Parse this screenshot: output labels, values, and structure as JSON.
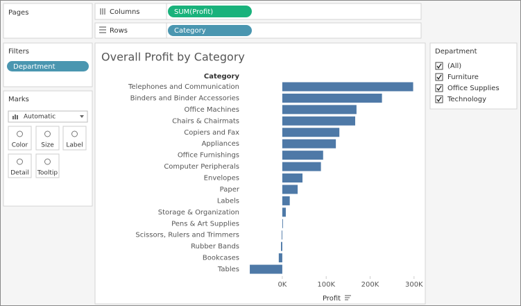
{
  "shelves": {
    "pages": "Pages",
    "columns": {
      "label": "Columns",
      "pill": "SUM(Profit)"
    },
    "rows": {
      "label": "Rows",
      "pill": "Category"
    }
  },
  "filters": {
    "title": "Filters",
    "pills": [
      "Department"
    ]
  },
  "marks": {
    "title": "Marks",
    "mark_type": "Automatic",
    "buttons": [
      "Color",
      "Size",
      "Label",
      "Detail",
      "Tooltip"
    ]
  },
  "chart_data": {
    "type": "bar",
    "orientation": "horizontal",
    "title": "Overall Profit by Category",
    "y_label": "Category",
    "x_label": "Profit",
    "categories": [
      "Telephones and Communication",
      "Binders and Binder Accessories",
      "Office Machines",
      "Chairs & Chairmats",
      "Copiers and Fax",
      "Appliances",
      "Office Furnishings",
      "Computer Peripherals",
      "Envelopes",
      "Paper",
      "Labels",
      "Storage & Organization",
      "Pens & Art Supplies",
      "Scissors, Rulers and Trimmers",
      "Rubber Bands",
      "Bookcases",
      "Tables"
    ],
    "values": [
      298000,
      227000,
      169000,
      166000,
      130000,
      122000,
      93000,
      88000,
      46000,
      35000,
      17000,
      8000,
      1500,
      -1500,
      -3000,
      -8000,
      -74000
    ],
    "color": "#4e79a7",
    "xlim": [
      -82000,
      324000
    ],
    "xticks": [
      {
        "value": 0,
        "label": "0K"
      },
      {
        "value": 100000,
        "label": "100K"
      },
      {
        "value": 200000,
        "label": "200K"
      },
      {
        "value": 300000,
        "label": "300K"
      }
    ]
  },
  "department_filter": {
    "title": "Department",
    "options": [
      "(All)",
      "Furniture",
      "Office Supplies",
      "Technology"
    ]
  }
}
